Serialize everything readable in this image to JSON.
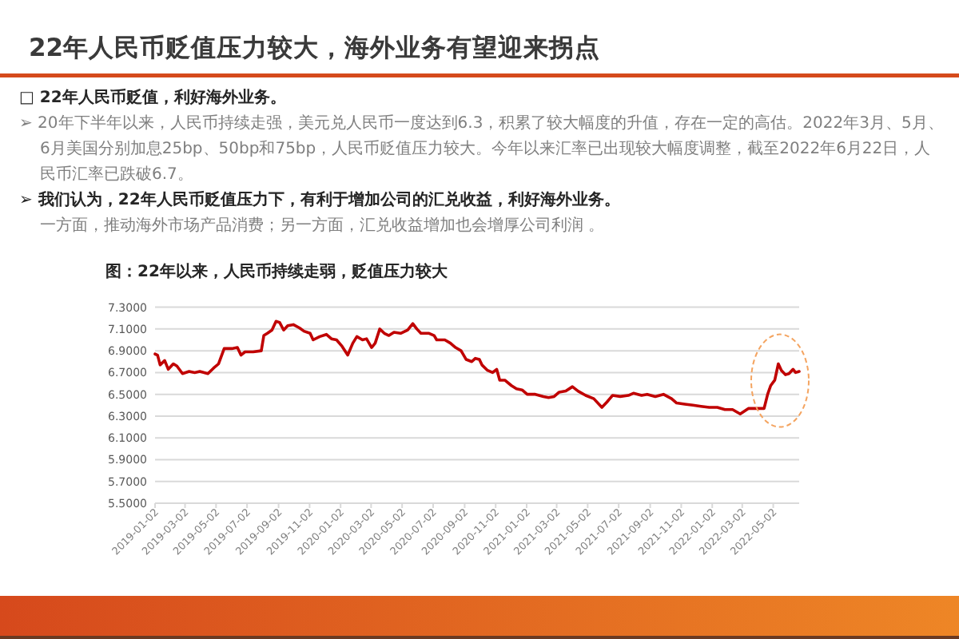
{
  "chart_data": {
    "type": "line",
    "title": "22年人民币贬值压力较大，海外业务有望迎来拐点",
    "subtitle": "图：22年以来，人民币持续走弱，贬值压力较大",
    "annotations": [
      "□ 22年人民币贬值，利好海外业务。",
      "➢ 20年下半年以来，人民币持续走强，美元兑人民币一度达到6.3，积累了较大幅度的升值，存在一定的高估。2022年3月、5月、6月美国分别加息25bp、50bp和75bp，人民币贬值压力较大。今年以来汇率已出现较大幅度调整，截至2022年6月22日，人民币汇率已跌破6.7。",
      "➢ 我们认为，22年人民币贬值压力下，有利于增加公司的汇兑收益，利好海外业务。",
      "一方面，推动海外市场产品消费；另一方面，汇兑收益增加也会增厚公司利润 。"
    ],
    "x": [
      "2019-01-02",
      "2019-01-07",
      "2019-01-12",
      "2019-01-21",
      "2019-01-28",
      "2019-02-07",
      "2019-02-14",
      "2019-02-25",
      "2019-03-10",
      "2019-03-21",
      "2019-03-31",
      "2019-04-16",
      "2019-04-27",
      "2019-05-07",
      "2019-05-18",
      "2019-06-02",
      "2019-06-13",
      "2019-06-20",
      "2019-06-28",
      "2019-07-14",
      "2019-07-30",
      "2019-08-04",
      "2019-08-11",
      "2019-08-20",
      "2019-08-28",
      "2019-09-04",
      "2019-09-12",
      "2019-09-20",
      "2019-10-01",
      "2019-10-13",
      "2019-10-22",
      "2019-11-03",
      "2019-11-09",
      "2019-11-22",
      "2019-12-05",
      "2019-12-15",
      "2019-12-25",
      "2020-01-05",
      "2020-01-16",
      "2020-01-26",
      "2020-02-03",
      "2020-02-14",
      "2020-02-22",
      "2020-03-03",
      "2020-03-10",
      "2020-03-19",
      "2020-03-28",
      "2020-04-06",
      "2020-04-16",
      "2020-04-29",
      "2020-05-13",
      "2020-05-23",
      "2020-05-31",
      "2020-06-08",
      "2020-06-24",
      "2020-07-04",
      "2020-07-09",
      "2020-07-25",
      "2020-08-05",
      "2020-08-15",
      "2020-08-26",
      "2020-09-05",
      "2020-09-16",
      "2020-09-23",
      "2020-10-01",
      "2020-10-06",
      "2020-10-17",
      "2020-10-27",
      "2020-11-04",
      "2020-11-10",
      "2020-11-20",
      "2020-12-03",
      "2020-12-13",
      "2020-12-24",
      "2021-01-03",
      "2021-01-19",
      "2021-02-04",
      "2021-02-14",
      "2021-02-25",
      "2021-03-07",
      "2021-03-20",
      "2021-04-02",
      "2021-04-13",
      "2021-04-28",
      "2021-05-14",
      "2021-05-30",
      "2021-06-09",
      "2021-06-20",
      "2021-07-05",
      "2021-07-21",
      "2021-07-31",
      "2021-08-16",
      "2021-08-27",
      "2021-09-12",
      "2021-09-28",
      "2021-10-14",
      "2021-10-24",
      "2021-11-09",
      "2021-11-25",
      "2021-12-11",
      "2021-12-27",
      "2022-01-12",
      "2022-01-27",
      "2022-02-11",
      "2022-02-26",
      "2022-03-14",
      "2022-03-29",
      "2022-04-14",
      "2022-04-21",
      "2022-04-27",
      "2022-05-05",
      "2022-05-12",
      "2022-05-18",
      "2022-05-26",
      "2022-06-02",
      "2022-06-10",
      "2022-06-15",
      "2022-06-22"
    ],
    "values": [
      6.87,
      6.86,
      6.77,
      6.81,
      6.73,
      6.78,
      6.76,
      6.69,
      6.71,
      6.7,
      6.71,
      6.69,
      6.74,
      6.78,
      6.92,
      6.92,
      6.93,
      6.86,
      6.89,
      6.89,
      6.9,
      7.04,
      7.06,
      7.09,
      7.17,
      7.16,
      7.09,
      7.13,
      7.14,
      7.11,
      7.08,
      7.06,
      7.0,
      7.03,
      7.05,
      7.01,
      7.0,
      6.94,
      6.86,
      6.97,
      7.03,
      7.0,
      7.01,
      6.93,
      6.97,
      7.1,
      7.06,
      7.04,
      7.07,
      7.06,
      7.09,
      7.15,
      7.1,
      7.06,
      7.06,
      7.04,
      7.0,
      7.0,
      6.97,
      6.93,
      6.9,
      6.82,
      6.8,
      6.83,
      6.82,
      6.77,
      6.72,
      6.7,
      6.73,
      6.63,
      6.63,
      6.58,
      6.55,
      6.54,
      6.5,
      6.5,
      6.48,
      6.47,
      6.48,
      6.52,
      6.53,
      6.57,
      6.53,
      6.49,
      6.46,
      6.38,
      6.43,
      6.49,
      6.48,
      6.49,
      6.51,
      6.49,
      6.5,
      6.48,
      6.5,
      6.46,
      6.42,
      6.41,
      6.4,
      6.39,
      6.38,
      6.38,
      6.36,
      6.36,
      6.32,
      6.37,
      6.37,
      6.37,
      6.5,
      6.58,
      6.63,
      6.78,
      6.72,
      6.68,
      6.69,
      6.73,
      6.7,
      6.71
    ],
    "color": "#c00000",
    "xlim": [
      "2019-01-02",
      "2022-06-22"
    ],
    "xticks": [
      "2019-01-02",
      "2019-03-02",
      "2019-05-02",
      "2019-07-02",
      "2019-09-02",
      "2019-11-02",
      "2020-01-02",
      "2020-03-02",
      "2020-05-02",
      "2020-07-02",
      "2020-09-02",
      "2020-11-02",
      "2021-01-02",
      "2021-03-02",
      "2021-05-02",
      "2021-07-02",
      "2021-09-02",
      "2021-11-02",
      "2022-01-02",
      "2022-03-02",
      "2022-05-02"
    ],
    "ylim": [
      5.5,
      7.3
    ],
    "yticks": [
      {
        "value": 5.5,
        "label": "5.5000"
      },
      {
        "value": 5.7,
        "label": "5.7000"
      },
      {
        "value": 5.9,
        "label": "5.9000"
      },
      {
        "value": 6.1,
        "label": "6.1000"
      },
      {
        "value": 6.3,
        "label": "6.3000"
      },
      {
        "value": 6.5,
        "label": "6.5000"
      },
      {
        "value": 6.7,
        "label": "6.7000"
      },
      {
        "value": 6.9,
        "label": "6.9000"
      },
      {
        "value": 7.1,
        "label": "7.1000"
      },
      {
        "value": 7.3,
        "label": "7.3000"
      }
    ],
    "grid": "y"
  }
}
